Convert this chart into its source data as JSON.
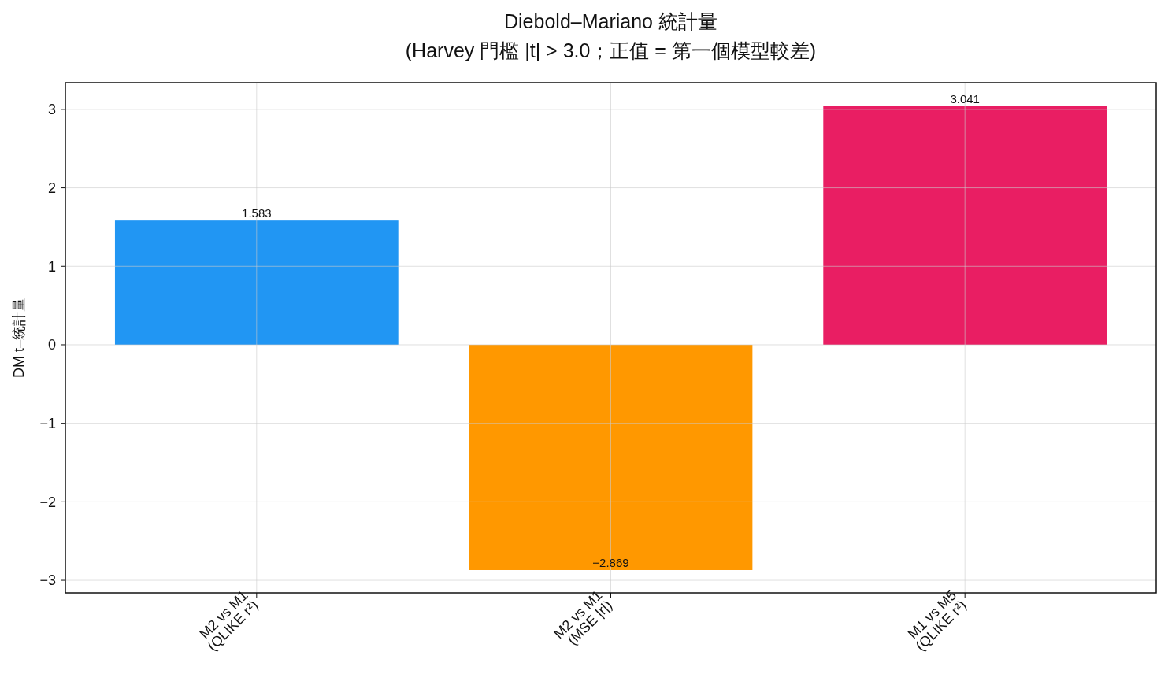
{
  "chart_data": {
    "type": "bar",
    "title": "Diebold–Mariano 統計量",
    "subtitle": "(Harvey 門檻 |t| > 3.0；正值 = 第一個模型較差)",
    "ylabel": "DM t–統計量",
    "categories": [
      "M2 vs M1\n(QLIKE r²)",
      "M2 vs M1\n(MSE |r|)",
      "M1 vs M5\n(QLIKE r²)"
    ],
    "values": [
      1.583,
      -2.869,
      3.041
    ],
    "colors": [
      "#2196f3",
      "#ff9800",
      "#e91e63"
    ],
    "ylim": [
      -3.16,
      3.34
    ],
    "yticks": [
      {
        "value": -3,
        "label": "−3"
      },
      {
        "value": -2,
        "label": "−2"
      },
      {
        "value": -1,
        "label": "−1"
      },
      0,
      1,
      2,
      3
    ],
    "grid": true,
    "data_labels": true
  }
}
